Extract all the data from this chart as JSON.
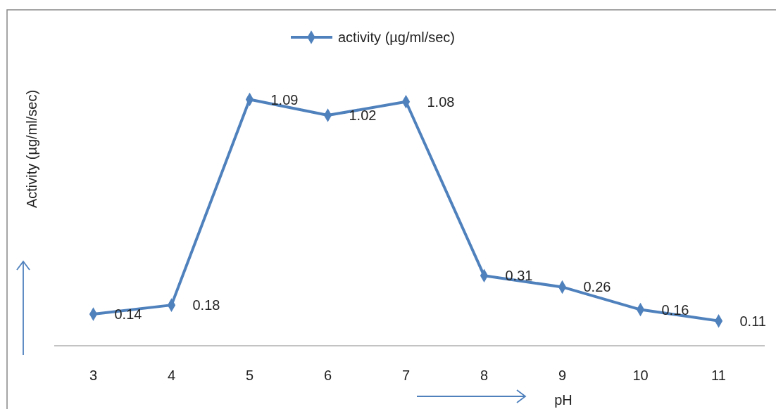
{
  "chart_data": {
    "type": "line",
    "ylabel": "Activity (µg/ml/sec)",
    "xlabel": "pH",
    "categories": [
      "3",
      "4",
      "5",
      "6",
      "7",
      "8",
      "9",
      "10",
      "11"
    ],
    "series": [
      {
        "name": "activity (µg/ml/sec)",
        "color": "#4f81bd",
        "values": [
          0.14,
          0.18,
          1.09,
          1.02,
          1.08,
          0.31,
          0.26,
          0.16,
          0.11
        ]
      }
    ],
    "data_labels": true,
    "marker": "diamond",
    "legend": "top",
    "grid": false,
    "tick_labels": "x"
  }
}
